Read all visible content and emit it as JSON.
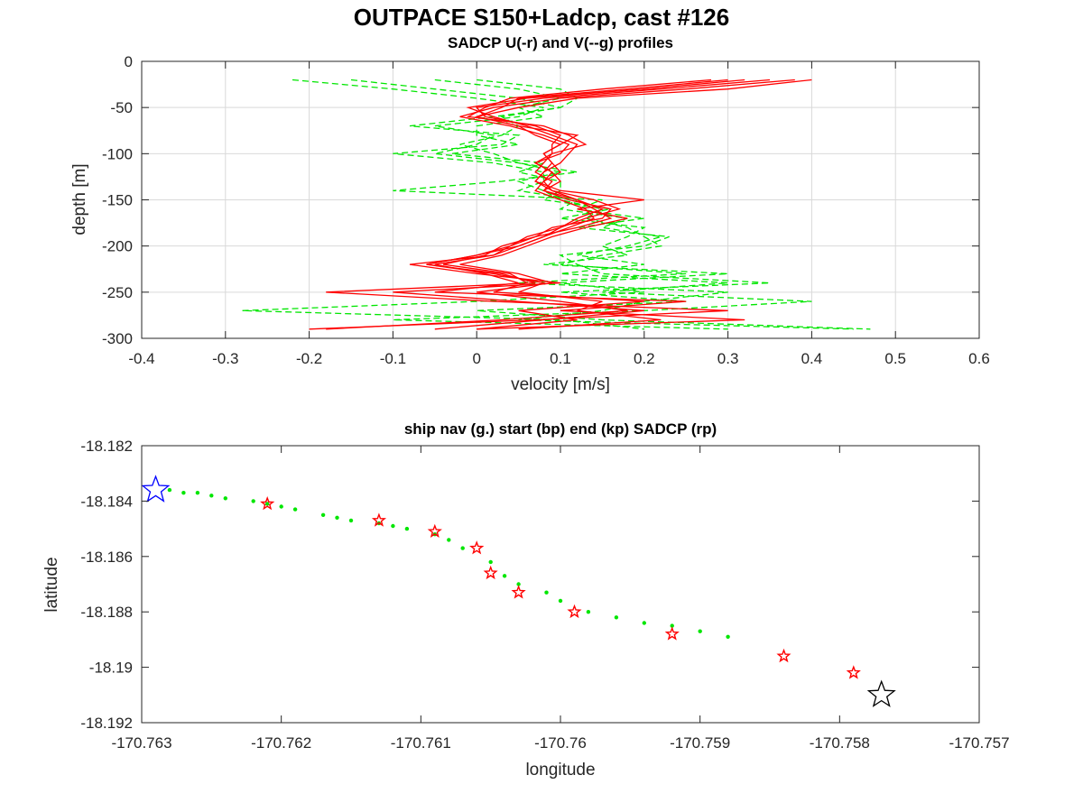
{
  "figure": {
    "title": "OUTPACE S150+Ladcp, cast #126"
  },
  "chart_data": [
    {
      "type": "line",
      "title": "SADCP U(-r) and V(--g) profiles",
      "xlabel": "velocity [m/s]",
      "ylabel": "depth [m]",
      "xlim": [
        -0.4,
        0.6
      ],
      "ylim": [
        -300,
        0
      ],
      "xticks": [
        "-0.4",
        "-0.3",
        "-0.2",
        "-0.1",
        "0",
        "0.1",
        "0.2",
        "0.3",
        "0.4",
        "0.5",
        "0.6"
      ],
      "yticks": [
        "0",
        "-50",
        "-100",
        "-150",
        "-200",
        "-250",
        "-300"
      ],
      "grid": true,
      "depth": [
        -20,
        -30,
        -40,
        -50,
        -60,
        -70,
        -80,
        -90,
        -100,
        -110,
        -120,
        -130,
        -140,
        -150,
        -160,
        -170,
        -180,
        -190,
        -200,
        -210,
        -220,
        -230,
        -240,
        -250,
        -260,
        -270,
        -280,
        -290
      ],
      "series": [
        {
          "name": "U",
          "color": "#ff0000",
          "style": "solid",
          "profiles": [
            [
              0.4,
              0.3,
              0.12,
              0.05,
              0.0,
              0.05,
              0.07,
              0.1,
              0.08,
              0.09,
              0.08,
              0.07,
              0.09,
              0.12,
              0.15,
              0.12,
              0.1,
              0.06,
              0.04,
              0.0,
              -0.06,
              0.02,
              0.08,
              0.05,
              0.15,
              0.12,
              0.22,
              0.05
            ],
            [
              0.38,
              0.25,
              0.1,
              0.02,
              -0.02,
              0.04,
              0.08,
              0.11,
              0.1,
              0.07,
              0.09,
              0.08,
              0.07,
              0.1,
              0.13,
              0.14,
              0.11,
              0.08,
              0.05,
              0.02,
              -0.08,
              0.0,
              0.1,
              -0.1,
              0.05,
              0.2,
              0.08,
              -0.05
            ],
            [
              0.35,
              0.22,
              0.08,
              0.0,
              0.01,
              0.07,
              0.1,
              0.09,
              0.09,
              0.08,
              0.07,
              0.09,
              0.08,
              0.11,
              0.16,
              0.15,
              0.09,
              0.07,
              0.03,
              0.01,
              -0.04,
              0.04,
              0.06,
              0.02,
              0.2,
              0.05,
              0.12,
              0.0
            ],
            [
              0.32,
              0.2,
              0.06,
              -0.01,
              0.02,
              0.06,
              0.09,
              0.12,
              0.11,
              0.1,
              0.08,
              0.07,
              0.1,
              0.2,
              0.12,
              0.18,
              0.13,
              0.09,
              0.06,
              0.03,
              -0.02,
              0.05,
              0.09,
              0.0,
              0.1,
              0.18,
              0.03,
              -0.18
            ],
            [
              0.3,
              0.18,
              0.05,
              0.03,
              0.0,
              0.05,
              0.12,
              0.1,
              0.08,
              0.09,
              0.1,
              0.08,
              0.09,
              0.14,
              0.17,
              0.13,
              0.1,
              0.08,
              0.05,
              0.0,
              -0.06,
              0.03,
              0.07,
              -0.18,
              0.02,
              0.3,
              0.07,
              -0.2
            ],
            [
              0.28,
              0.15,
              0.04,
              0.01,
              -0.01,
              0.08,
              0.11,
              0.13,
              0.09,
              0.07,
              0.09,
              0.1,
              0.08,
              0.12,
              0.14,
              0.16,
              0.12,
              0.07,
              0.04,
              0.02,
              -0.05,
              0.01,
              0.05,
              -0.05,
              0.25,
              0.1,
              0.32,
              0.0
            ]
          ]
        },
        {
          "name": "V",
          "color": "#00e600",
          "style": "dashed",
          "profiles": [
            [
              -0.22,
              -0.1,
              0.0,
              0.08,
              0.05,
              -0.05,
              0.02,
              0.0,
              -0.05,
              0.05,
              0.1,
              0.05,
              0.08,
              0.1,
              0.15,
              0.13,
              0.18,
              0.2,
              0.22,
              0.15,
              0.1,
              0.25,
              0.05,
              0.3,
              0.2,
              0.15,
              0.05,
              0.45
            ],
            [
              -0.15,
              -0.05,
              0.05,
              0.1,
              0.02,
              -0.08,
              0.05,
              0.03,
              -0.1,
              0.02,
              0.08,
              0.08,
              0.05,
              0.12,
              0.1,
              0.18,
              0.15,
              0.22,
              0.18,
              0.12,
              0.2,
              0.1,
              0.3,
              0.15,
              0.4,
              0.2,
              -0.1,
              0.3
            ],
            [
              -0.05,
              0.05,
              0.1,
              0.05,
              0.08,
              0.0,
              0.0,
              0.05,
              -0.03,
              0.08,
              0.05,
              0.1,
              0.1,
              0.08,
              0.16,
              0.1,
              0.2,
              0.18,
              0.15,
              0.18,
              0.08,
              0.3,
              0.1,
              0.2,
              0.0,
              -0.28,
              0.1,
              0.2
            ],
            [
              0.0,
              0.1,
              0.12,
              0.1,
              0.03,
              0.05,
              0.03,
              -0.02,
              0.02,
              0.05,
              0.12,
              0.03,
              -0.1,
              0.15,
              0.12,
              0.2,
              0.12,
              0.23,
              0.2,
              0.1,
              0.12,
              0.15,
              0.35,
              0.1,
              0.25,
              0.0,
              0.15,
              0.47
            ]
          ]
        }
      ]
    },
    {
      "type": "scatter",
      "title": "ship nav (g.) start (bp) end (kp) SADCP (rp)",
      "xlabel": "longitude",
      "ylabel": "latitude",
      "xlim": [
        -170.763,
        -170.757
      ],
      "ylim": [
        -18.192,
        -18.182
      ],
      "xticks": [
        "-170.763",
        "-170.762",
        "-170.761",
        "-170.76",
        "-170.759",
        "-170.758",
        "-170.757"
      ],
      "yticks": [
        "-18.182",
        "-18.184",
        "-18.186",
        "-18.188",
        "-18.19",
        "-18.192"
      ],
      "grid": false,
      "series": [
        {
          "name": "ship nav",
          "color": "#00e600",
          "marker": "dot",
          "lon": [
            -170.7628,
            -170.7627,
            -170.7626,
            -170.7625,
            -170.7624,
            -170.7622,
            -170.7621,
            -170.762,
            -170.7619,
            -170.7617,
            -170.7616,
            -170.7615,
            -170.7613,
            -170.7612,
            -170.7611,
            -170.7609,
            -170.7608,
            -170.7607,
            -170.7605,
            -170.7604,
            -170.7603,
            -170.7601,
            -170.76,
            -170.7598,
            -170.7596,
            -170.7594,
            -170.7592,
            -170.759,
            -170.7588
          ],
          "lat": [
            -18.1836,
            -18.1837,
            -18.1837,
            -18.1838,
            -18.1839,
            -18.184,
            -18.1841,
            -18.1842,
            -18.1843,
            -18.1845,
            -18.1846,
            -18.1847,
            -18.1848,
            -18.1849,
            -18.185,
            -18.1852,
            -18.1854,
            -18.1857,
            -18.1862,
            -18.1867,
            -18.187,
            -18.1873,
            -18.1876,
            -18.188,
            -18.1882,
            -18.1884,
            -18.1885,
            -18.1887,
            -18.1889
          ]
        },
        {
          "name": "SADCP",
          "color": "#ff0000",
          "marker": "star",
          "lon": [
            -170.7621,
            -170.7613,
            -170.7609,
            -170.7606,
            -170.7605,
            -170.7603,
            -170.7599,
            -170.7592,
            -170.7584,
            -170.7579
          ],
          "lat": [
            -18.1841,
            -18.1847,
            -18.1851,
            -18.1857,
            -18.1866,
            -18.1873,
            -18.188,
            -18.1888,
            -18.1896,
            -18.1902
          ]
        },
        {
          "name": "start",
          "color": "#0000ff",
          "marker": "star",
          "lon": [
            -170.7629
          ],
          "lat": [
            -18.1836
          ]
        },
        {
          "name": "end",
          "color": "#000000",
          "marker": "star",
          "lon": [
            -170.7577
          ],
          "lat": [
            -18.191
          ]
        }
      ]
    }
  ]
}
